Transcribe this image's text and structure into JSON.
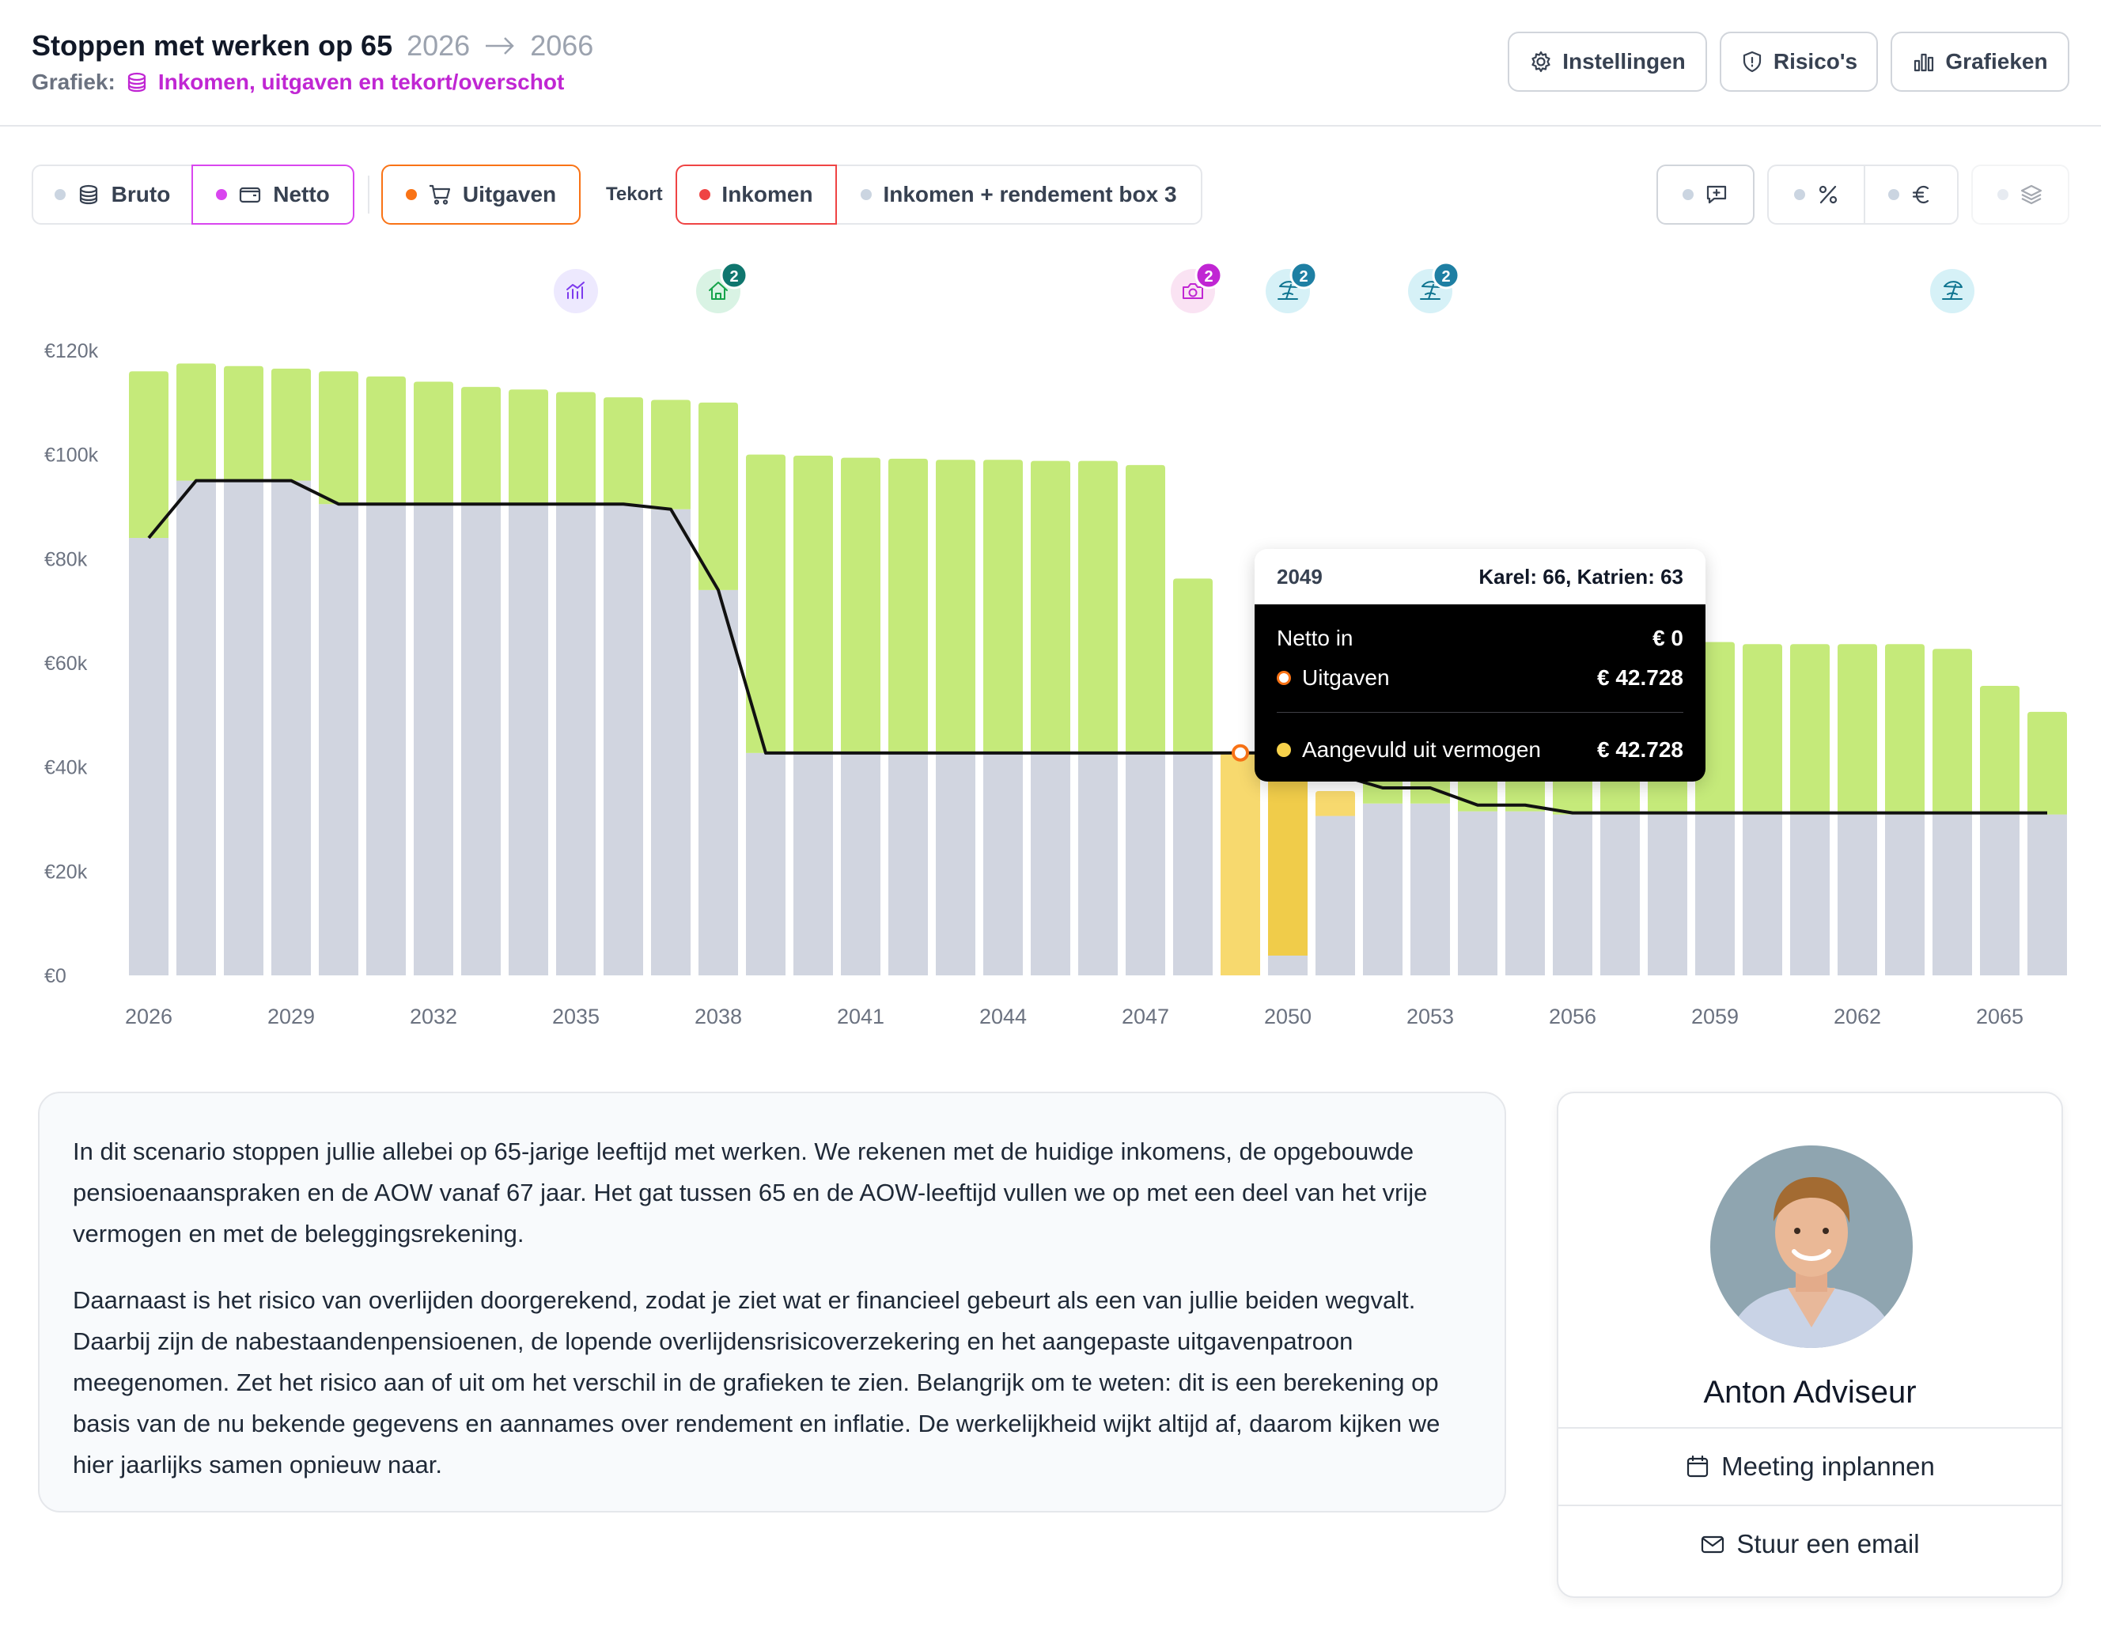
{
  "header": {
    "title": "Stoppen met werken op 65",
    "year_start": "2026",
    "year_end": "2066",
    "subtitle_label": "Grafiek:",
    "subtitle_value": "Inkomen, uitgaven en tekort/overschot",
    "buttons": {
      "settings": "Instellingen",
      "risks": "Risico's",
      "charts": "Grafieken"
    }
  },
  "toolbar": {
    "bruto": "Bruto",
    "netto": "Netto",
    "uitgaven": "Uitgaven",
    "tekort_label": "Tekort",
    "inkomen": "Inkomen",
    "inkomen_box3": "Inkomen + rendement box 3"
  },
  "markers": [
    {
      "icon": "chart-icon",
      "year": 2035,
      "badge": ""
    },
    {
      "icon": "house-icon",
      "year": 2038,
      "badge": "2"
    },
    {
      "icon": "camera-icon",
      "year": 2048,
      "badge": "2"
    },
    {
      "icon": "beach-icon",
      "year": 2050,
      "badge": "2"
    },
    {
      "icon": "beach-icon",
      "year": 2053,
      "badge": "2"
    },
    {
      "icon": "beach-icon",
      "year": 2064,
      "badge": ""
    }
  ],
  "colors": {
    "income_gray": "#d1d5e0",
    "surplus_green": "#c5ea7a",
    "shortfall_yellow": "#f7d96e",
    "shortfall_yellow_dark": "#f0cc4a",
    "line": "#111111",
    "accent_purple": "#c026d3",
    "accent_orange": "#f97316",
    "accent_red": "#ef4444"
  },
  "chart_data": {
    "type": "bar",
    "x": [
      2026,
      2027,
      2028,
      2029,
      2030,
      2031,
      2032,
      2033,
      2034,
      2035,
      2036,
      2037,
      2038,
      2039,
      2040,
      2041,
      2042,
      2043,
      2044,
      2045,
      2046,
      2047,
      2048,
      2049,
      2050,
      2051,
      2052,
      2053,
      2054,
      2055,
      2056,
      2057,
      2058,
      2059,
      2060,
      2061,
      2062,
      2063,
      2064,
      2065,
      2066
    ],
    "ylim": [
      0,
      120000
    ],
    "yticks": [
      "€0",
      "€20k",
      "€40k",
      "€60k",
      "€80k",
      "€100k",
      "€120k"
    ],
    "xtick_labels": [
      "2026",
      "2029",
      "2032",
      "2035",
      "2038",
      "2041",
      "2044",
      "2047",
      "2050",
      "2053",
      "2056",
      "2059",
      "2062",
      "2065"
    ],
    "series": [
      {
        "key": "income",
        "values": [
          84000,
          95000,
          95000,
          95000,
          90500,
          90500,
          90500,
          90500,
          90500,
          90500,
          90500,
          89500,
          74000,
          42700,
          42700,
          42700,
          42700,
          42700,
          42700,
          42700,
          42700,
          42700,
          42700,
          0,
          3800,
          30600,
          33000,
          33000,
          31500,
          31500,
          30900,
          30900,
          30900,
          30900,
          30900,
          30900,
          30900,
          30900,
          30900,
          30900,
          30900
        ]
      },
      {
        "key": "surplus",
        "values": [
          32000,
          22500,
          22000,
          21500,
          25500,
          24500,
          23500,
          22500,
          22000,
          21500,
          20500,
          21000,
          36000,
          57300,
          57100,
          56700,
          56500,
          56300,
          56300,
          56100,
          56100,
          55300,
          33500,
          0,
          0,
          0,
          10600,
          13100,
          12900,
          13100,
          33100,
          33100,
          33100,
          33100,
          32700,
          32700,
          32700,
          32700,
          31800,
          24700,
          19700
        ]
      },
      {
        "key": "shortfall",
        "values": [
          0,
          0,
          0,
          0,
          0,
          0,
          0,
          0,
          0,
          0,
          0,
          0,
          0,
          0,
          0,
          0,
          0,
          0,
          0,
          0,
          0,
          0,
          0,
          42728,
          38900,
          4800,
          0,
          0,
          0,
          0,
          0,
          0,
          0,
          0,
          0,
          0,
          0,
          0,
          0,
          0,
          0
        ]
      },
      {
        "key": "uitgaven",
        "values": [
          84000,
          95000,
          95000,
          95000,
          90500,
          90500,
          90500,
          90500,
          90500,
          90500,
          90500,
          89500,
          74000,
          42700,
          42700,
          42700,
          42700,
          42700,
          42700,
          42700,
          42700,
          42700,
          42700,
          42728,
          42700,
          38700,
          36000,
          36000,
          32700,
          32700,
          31200,
          31200,
          31200,
          31200,
          31200,
          31200,
          31200,
          31200,
          31200,
          31200,
          31200
        ]
      }
    ]
  },
  "tooltip": {
    "year": "2049",
    "ages": "Karel: 66, Katrien: 63",
    "netto_label": "Netto in",
    "netto_value": "€ 0",
    "uitgaven_label": "Uitgaven",
    "uitgaven_value": "€ 42.728",
    "aangevuld_label": "Aangevuld uit vermogen",
    "aangevuld_value": "€ 42.728"
  },
  "description": {
    "p1": "In dit scenario stoppen jullie allebei op 65-jarige leeftijd met werken. We rekenen met de huidige inkomens, de opgebouwde pensioenaanspraken en de AOW vanaf 67 jaar. Het gat tussen 65 en de AOW-leeftijd vullen we op met een deel van het vrije vermogen en met de beleggingsrekening.",
    "p2": "Daarnaast is het risico van overlijden doorgerekend, zodat je ziet wat er financieel gebeurt als een van jullie beiden wegvalt. Daarbij zijn de nabestaandenpensioenen, de lopende overlijdensrisicoverzekering en het aangepaste uitgavenpatroon meegenomen. Zet het risico aan of uit om het verschil in de grafieken te zien. Belangrijk om te weten: dit is een berekening op basis van de nu bekende gegevens en aannames over rendement en inflatie. De werkelijkheid wijkt altijd af, daarom kijken we hier jaarlijks samen opnieuw naar."
  },
  "advisor": {
    "name": "Anton Adviseur",
    "meeting": "Meeting inplannen",
    "email": "Stuur een email"
  }
}
